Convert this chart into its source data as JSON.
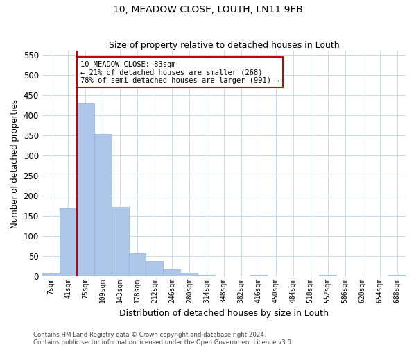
{
  "title": "10, MEADOW CLOSE, LOUTH, LN11 9EB",
  "subtitle": "Size of property relative to detached houses in Louth",
  "xlabel": "Distribution of detached houses by size in Louth",
  "ylabel": "Number of detached properties",
  "bar_color": "#aec6e8",
  "bar_edge_color": "#8ab4d8",
  "grid_color": "#c8d8ea",
  "background_color": "#ffffff",
  "annotation_line_color": "#cc0000",
  "annotation_box_color": "#cc0000",
  "categories": [
    "7sqm",
    "41sqm",
    "75sqm",
    "109sqm",
    "143sqm",
    "178sqm",
    "212sqm",
    "246sqm",
    "280sqm",
    "314sqm",
    "348sqm",
    "382sqm",
    "416sqm",
    "450sqm",
    "484sqm",
    "518sqm",
    "552sqm",
    "586sqm",
    "620sqm",
    "654sqm",
    "688sqm"
  ],
  "values": [
    7,
    169,
    430,
    353,
    173,
    57,
    38,
    18,
    8,
    4,
    0,
    0,
    4,
    0,
    0,
    0,
    3,
    0,
    0,
    0,
    3
  ],
  "property_bar_index": 2,
  "annotation_text": "10 MEADOW CLOSE: 83sqm\n← 21% of detached houses are smaller (268)\n78% of semi-detached houses are larger (991) →",
  "ylim": [
    0,
    560
  ],
  "yticks": [
    0,
    50,
    100,
    150,
    200,
    250,
    300,
    350,
    400,
    450,
    500,
    550
  ],
  "footer_text": "Contains HM Land Registry data © Crown copyright and database right 2024.\nContains public sector information licensed under the Open Government Licence v3.0.",
  "figsize": [
    6.0,
    5.0
  ],
  "dpi": 100
}
